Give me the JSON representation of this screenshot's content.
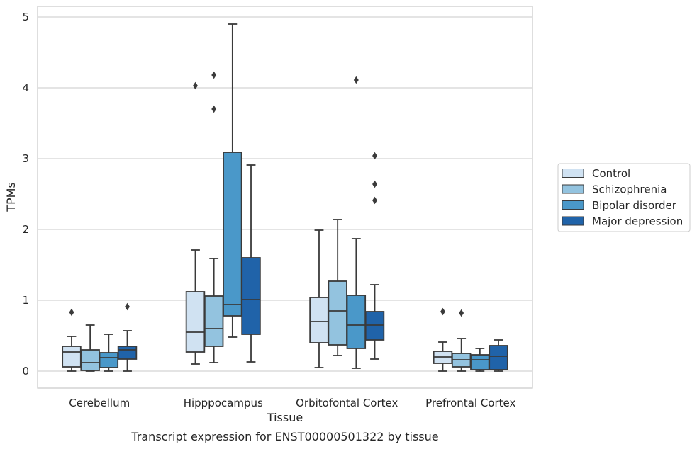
{
  "caption": "Transcript expression for ENST00000501322 by tissue",
  "colors": {
    "Control": "#d0e2f2",
    "Schizophrenia": "#93c3df",
    "Bipolar disorder": "#4a98c9",
    "Major depression": "#2063a9",
    "edge": "#3a3a3a",
    "grid": "#d4d4d4",
    "frame": "#cccccc"
  },
  "chart_data": {
    "type": "box",
    "title": "",
    "xlabel": "Tissue",
    "ylabel": "TPMs",
    "ylim": [
      -0.24,
      5.15
    ],
    "yticks": [
      0,
      1,
      2,
      3,
      4,
      5
    ],
    "grid": "horizontal",
    "legend_position": "right",
    "categories": [
      "Cerebellum",
      "Hipppocampus",
      "Orbitofontal Cortex",
      "Prefrontal Cortex"
    ],
    "series": [
      {
        "name": "Control",
        "boxes": [
          {
            "whislo": 0.0,
            "q1": 0.06,
            "med": 0.27,
            "q3": 0.35,
            "whishi": 0.49,
            "fliers": [
              0.83
            ]
          },
          {
            "whislo": 0.1,
            "q1": 0.27,
            "med": 0.55,
            "q3": 1.12,
            "whishi": 1.71,
            "fliers": [
              4.03
            ]
          },
          {
            "whislo": 0.05,
            "q1": 0.4,
            "med": 0.7,
            "q3": 1.04,
            "whishi": 1.99,
            "fliers": []
          },
          {
            "whislo": 0.0,
            "q1": 0.11,
            "med": 0.2,
            "q3": 0.28,
            "whishi": 0.41,
            "fliers": [
              0.84
            ]
          }
        ]
      },
      {
        "name": "Schizophrenia",
        "boxes": [
          {
            "whislo": 0.0,
            "q1": 0.01,
            "med": 0.12,
            "q3": 0.3,
            "whishi": 0.65,
            "fliers": []
          },
          {
            "whislo": 0.12,
            "q1": 0.35,
            "med": 0.6,
            "q3": 1.06,
            "whishi": 1.59,
            "fliers": [
              3.7,
              4.18
            ]
          },
          {
            "whislo": 0.22,
            "q1": 0.37,
            "med": 0.85,
            "q3": 1.27,
            "whishi": 2.14,
            "fliers": []
          },
          {
            "whislo": 0.0,
            "q1": 0.06,
            "med": 0.16,
            "q3": 0.25,
            "whishi": 0.46,
            "fliers": [
              0.82
            ]
          }
        ]
      },
      {
        "name": "Bipolar disorder",
        "boxes": [
          {
            "whislo": 0.0,
            "q1": 0.05,
            "med": 0.19,
            "q3": 0.26,
            "whishi": 0.52,
            "fliers": []
          },
          {
            "whislo": 0.48,
            "q1": 0.78,
            "med": 0.94,
            "q3": 3.09,
            "whishi": 4.9,
            "fliers": []
          },
          {
            "whislo": 0.04,
            "q1": 0.32,
            "med": 0.65,
            "q3": 1.07,
            "whishi": 1.87,
            "fliers": [
              4.11
            ]
          },
          {
            "whislo": 0.0,
            "q1": 0.02,
            "med": 0.16,
            "q3": 0.23,
            "whishi": 0.32,
            "fliers": []
          }
        ]
      },
      {
        "name": "Major depression",
        "boxes": [
          {
            "whislo": 0.0,
            "q1": 0.17,
            "med": 0.3,
            "q3": 0.35,
            "whishi": 0.57,
            "fliers": [
              0.91
            ]
          },
          {
            "whislo": 0.13,
            "q1": 0.52,
            "med": 1.01,
            "q3": 1.6,
            "whishi": 2.91,
            "fliers": []
          },
          {
            "whislo": 0.17,
            "q1": 0.44,
            "med": 0.65,
            "q3": 0.84,
            "whishi": 1.22,
            "fliers": [
              2.41,
              2.64,
              3.04
            ]
          },
          {
            "whislo": 0.0,
            "q1": 0.02,
            "med": 0.21,
            "q3": 0.36,
            "whishi": 0.44,
            "fliers": []
          }
        ]
      }
    ]
  }
}
